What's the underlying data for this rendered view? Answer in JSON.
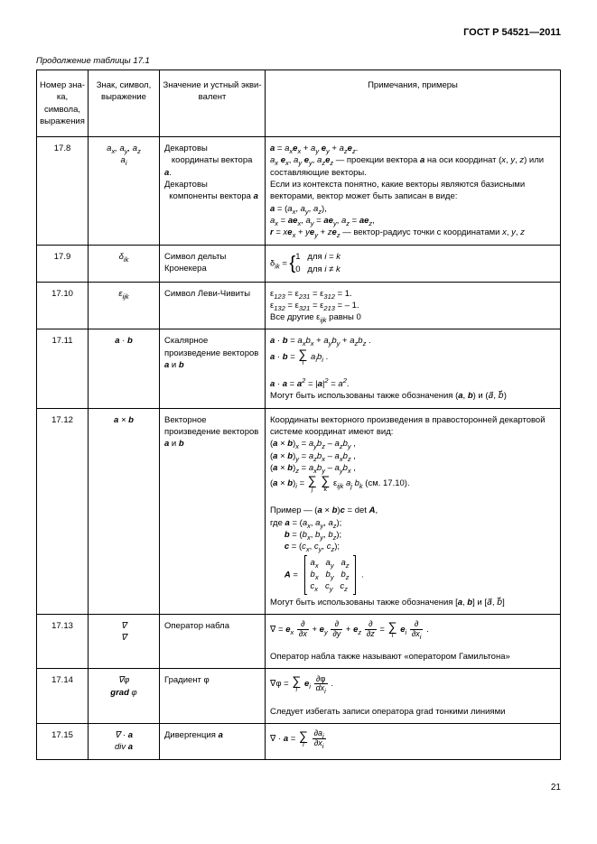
{
  "doc_title": "ГОСТ Р 54521—2011",
  "caption": "Продолжение таблицы 17.1",
  "page_number": "21",
  "headers": {
    "c1": "Номер зна-\nка, символа,\nвыражения",
    "c2": "Знак, символ,\nвыражение",
    "c3": "Значение и устный экви-\nвалент",
    "c4": "Примечания, примеры"
  },
  "rows": [
    {
      "num": "17.8",
      "mean": "Декартовы координаты вектора a.\nДекартовы компоненты вектора a"
    },
    {
      "num": "17.9",
      "mean": "Символ дельты Кронекера"
    },
    {
      "num": "17.10",
      "mean": "Символ Леви-Чивиты"
    },
    {
      "num": "17.11",
      "mean": "Скалярное произведение векторов a и b"
    },
    {
      "num": "17.12",
      "mean": "Векторное произведение векторов a и b"
    },
    {
      "num": "17.13",
      "mean": "Оператор набла"
    },
    {
      "num": "17.14",
      "mean": "Градиент φ"
    },
    {
      "num": "17.15",
      "mean": "Дивергенция a"
    }
  ],
  "t": {
    "proj": " — проекции вектора ",
    "proj2": " на оси координат (",
    "proj3": ") или составляющие векторы.",
    "ctx": "Если из контекста понятно, какие векторы являются базисными векторами, вектор может быть записан в виде:",
    "rvec": " — вектор-радиус точки с координатами ",
    "for": " для ",
    "allother": "Все другие ε",
    "equal0": " равны 0",
    "mayuse": "Могут быть использованы также обозначения (",
    "mayuse2": "Могут быть использованы также обозначения [",
    "and": " и ",
    "coordtxt": "Координаты векторного произведения в правосторонней декартовой системе координат имеют вид:",
    "see": " (см. 17.10).",
    "example": "Пример — ",
    "where": "где ",
    "nablaalso": "Оператор набла также называют «оператором Гамильтона»",
    "avoid": "Следует избегать записи оператора grad тонкими линиями"
  }
}
